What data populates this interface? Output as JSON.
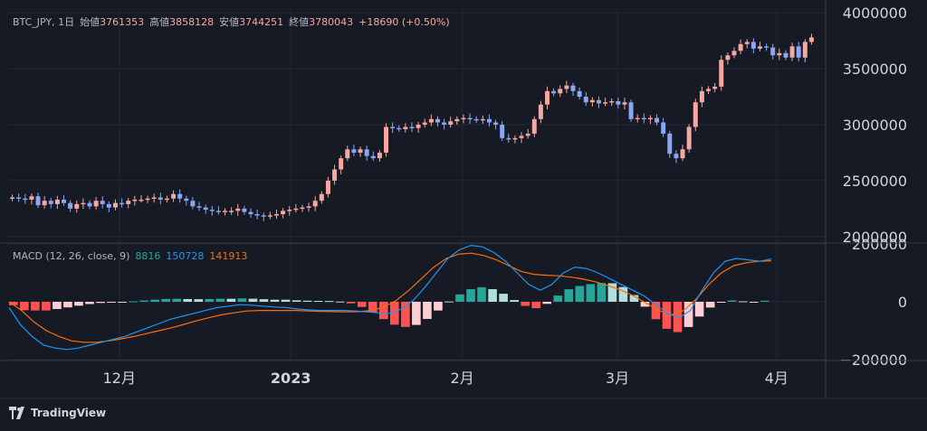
{
  "price_legend": {
    "symbol": "BTC_JPY, 1日",
    "open_label": "始値",
    "open": "3761353",
    "high_label": "高値",
    "high": "3858128",
    "low_label": "安値",
    "low": "3744251",
    "close_label": "終値",
    "close": "3780043",
    "change": "+18690 (+0.50%)"
  },
  "macd_legend": {
    "title": "MACD (12, 26, close, 9)",
    "hist": "8816",
    "macd": "150728",
    "signal": "141913"
  },
  "brand": {
    "name": "TradingView"
  },
  "colors": {
    "background": "#161a25",
    "up_candle": "#f7a6a0",
    "down_candle": "#8aa6f5",
    "hist_pos_strong": "#26a69a",
    "hist_pos_weak": "#b2dfdb",
    "hist_neg_strong": "#ff5252",
    "hist_neg_weak": "#ffcdd2",
    "macd_line": "#2196f3",
    "signal_line": "#ff6d00"
  },
  "chart_data": [
    {
      "type": "candlestick",
      "title": "BTC_JPY, 1日",
      "ylim": [
        1950000,
        4050000
      ],
      "y_ticks": [
        "4000000",
        "3500000",
        "3000000",
        "2500000",
        "2000000"
      ],
      "x_ticks": [
        "12月",
        "2023",
        "2月",
        "3月",
        "4月"
      ],
      "close_values": [
        2350000,
        2340000,
        2330000,
        2360000,
        2280000,
        2320000,
        2290000,
        2330000,
        2300000,
        2250000,
        2290000,
        2300000,
        2270000,
        2320000,
        2290000,
        2260000,
        2300000,
        2290000,
        2320000,
        2330000,
        2330000,
        2340000,
        2350000,
        2330000,
        2340000,
        2380000,
        2340000,
        2320000,
        2270000,
        2260000,
        2240000,
        2230000,
        2220000,
        2230000,
        2230000,
        2250000,
        2220000,
        2200000,
        2190000,
        2180000,
        2190000,
        2200000,
        2230000,
        2240000,
        2250000,
        2260000,
        2270000,
        2320000,
        2380000,
        2500000,
        2600000,
        2700000,
        2780000,
        2750000,
        2780000,
        2720000,
        2700000,
        2750000,
        2980000,
        2970000,
        2960000,
        2980000,
        2970000,
        3000000,
        3020000,
        3050000,
        3020000,
        3000000,
        3030000,
        3050000,
        3060000,
        3050000,
        3040000,
        3050000,
        3020000,
        3000000,
        2880000,
        2870000,
        2880000,
        2900000,
        2920000,
        3050000,
        3180000,
        3300000,
        3280000,
        3320000,
        3350000,
        3300000,
        3250000,
        3200000,
        3220000,
        3190000,
        3200000,
        3210000,
        3180000,
        3200000,
        3050000,
        3060000,
        3050000,
        3060000,
        3020000,
        2920000,
        2740000,
        2700000,
        2780000,
        2980000,
        3200000,
        3300000,
        3320000,
        3340000,
        3580000,
        3620000,
        3660000,
        3720000,
        3740000,
        3680000,
        3700000,
        3690000,
        3620000,
        3640000,
        3600000,
        3700000,
        3600000,
        3740000,
        3780000
      ]
    },
    {
      "type": "macd",
      "title": "MACD (12, 26, close, 9)",
      "ylim": [
        -200000,
        200000
      ],
      "y_ticks": [
        "200000",
        "0",
        "−200000"
      ],
      "macd_values": [
        -20000,
        -80000,
        -120000,
        -150000,
        -160000,
        -165000,
        -160000,
        -150000,
        -140000,
        -130000,
        -120000,
        -105000,
        -90000,
        -75000,
        -60000,
        -50000,
        -40000,
        -30000,
        -20000,
        -15000,
        -10000,
        -12000,
        -15000,
        -18000,
        -20000,
        -25000,
        -28000,
        -30000,
        -30000,
        -30000,
        -32000,
        -35000,
        -38000,
        -40000,
        -25000,
        5000,
        50000,
        100000,
        150000,
        180000,
        195000,
        190000,
        170000,
        140000,
        100000,
        60000,
        40000,
        60000,
        100000,
        120000,
        115000,
        100000,
        80000,
        60000,
        40000,
        20000,
        -10000,
        -40000,
        -55000,
        -30000,
        40000,
        100000,
        140000,
        150000,
        145000,
        140000,
        148000
      ],
      "signal_values": [
        0,
        -30000,
        -70000,
        -100000,
        -120000,
        -135000,
        -140000,
        -140000,
        -135000,
        -128000,
        -120000,
        -110000,
        -100000,
        -90000,
        -78000,
        -66000,
        -55000,
        -45000,
        -38000,
        -32000,
        -30000,
        -30000,
        -30000,
        -30000,
        -32000,
        -33000,
        -34000,
        -35000,
        -34000,
        -30000,
        -18000,
        5000,
        40000,
        80000,
        120000,
        150000,
        165000,
        168000,
        160000,
        145000,
        125000,
        105000,
        95000,
        92000,
        90000,
        85000,
        78000,
        68000,
        55000,
        40000,
        20000,
        -5000,
        -30000,
        -45000,
        -30000,
        10000,
        60000,
        100000,
        125000,
        135000,
        140000,
        141913
      ]
    }
  ]
}
